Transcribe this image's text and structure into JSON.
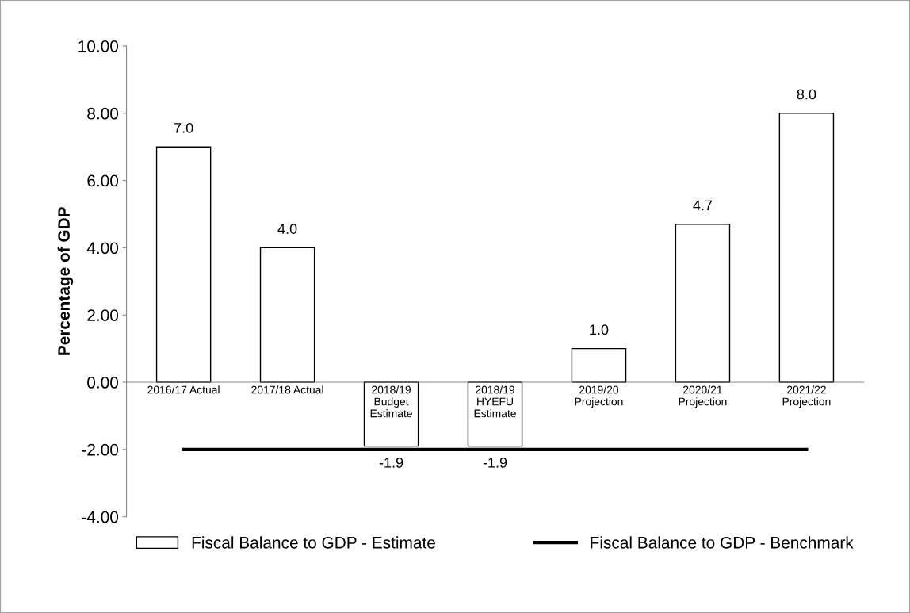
{
  "chart_data": {
    "type": "bar",
    "ylabel": "Percentage of GDP",
    "categories": [
      "2016/17 Actual",
      "2017/18 Actual",
      "2018/19\nBudget\nEstimate",
      "2018/19\nHYEFU\nEstimate",
      "2019/20\nProjection",
      "2020/21\nProjection",
      "2021/22\nProjection"
    ],
    "series": [
      {
        "name": "Fiscal Balance to GDP - Estimate",
        "color": "#ffffff",
        "values": [
          7.0,
          4.0,
          -1.9,
          -1.9,
          1.0,
          4.7,
          8.0
        ],
        "value_labels": [
          "7.0",
          "4.0",
          "-1.9",
          "-1.9",
          "1.0",
          "4.7",
          "8.0"
        ]
      },
      {
        "name": "Fiscal Balance to GDP - Benchmark",
        "type": "line",
        "color": "#000000",
        "values": [
          -2,
          -2,
          -2,
          -2,
          -2,
          -2,
          -2
        ]
      }
    ],
    "ylim": [
      -4,
      10
    ],
    "yticks": [
      {
        "value": -4,
        "label": "-4.00"
      },
      {
        "value": -2,
        "label": "-2.00"
      },
      {
        "value": 0,
        "label": "0.00"
      },
      {
        "value": 2,
        "label": "2.00"
      },
      {
        "value": 4,
        "label": "4.00"
      },
      {
        "value": 6,
        "label": "6.00"
      },
      {
        "value": 8,
        "label": "8.00"
      },
      {
        "value": 10,
        "label": "10.00"
      }
    ],
    "grid": false,
    "legend": "bottom"
  }
}
